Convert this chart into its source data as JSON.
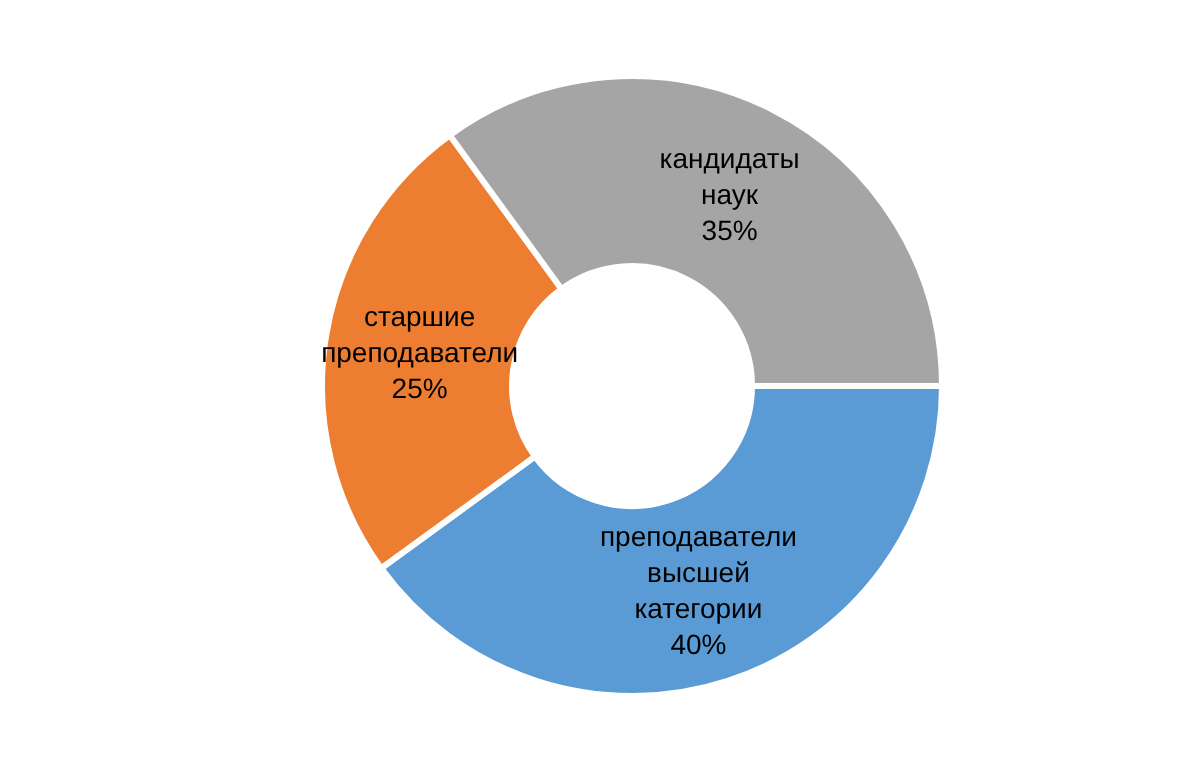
{
  "chart_data": {
    "type": "donut",
    "categories": [
      "преподаватели высшей категории",
      "старшие преподаватели",
      "кандидаты наук"
    ],
    "values": [
      40,
      25,
      35
    ],
    "colors": [
      "#5b9bd5",
      "#ed7d31",
      "#a5a5a5"
    ],
    "value_labels": [
      "40%",
      "25%",
      "35%"
    ],
    "legend": false
  }
}
